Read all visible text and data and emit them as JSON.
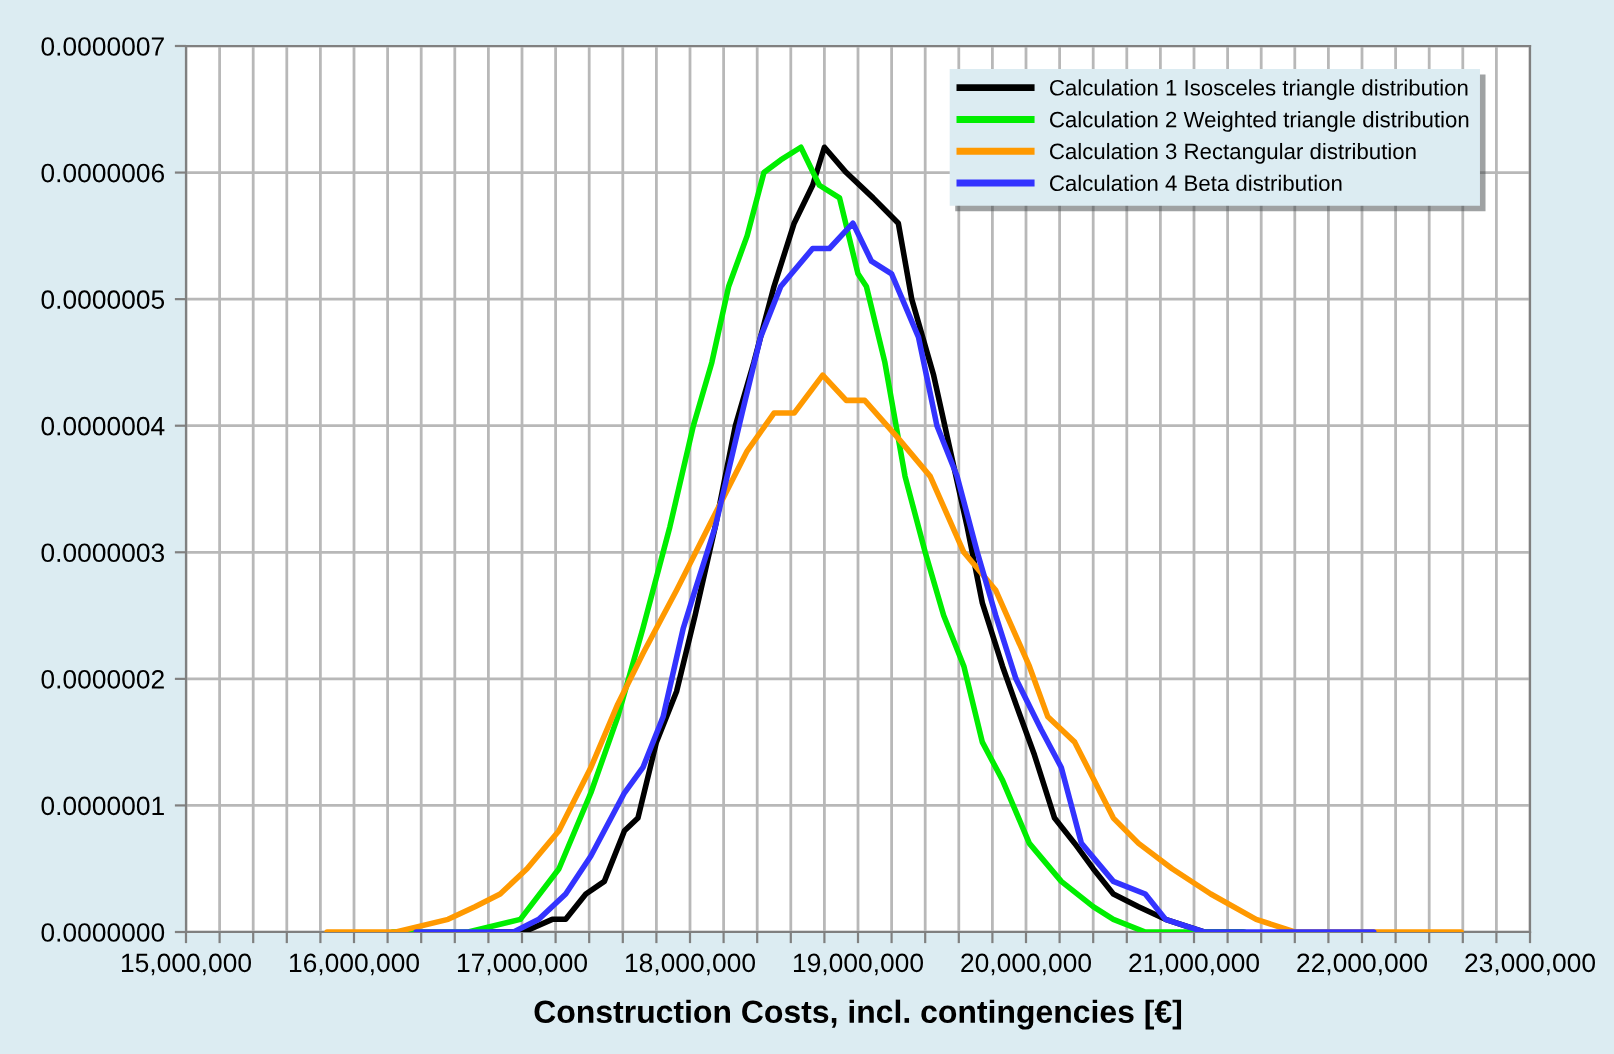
{
  "chart_data": {
    "type": "line",
    "xlabel": "Construction Costs, incl. contingencies [€]",
    "xlim": [
      15000000,
      23000000
    ],
    "xticks": [
      {
        "value": 15000000,
        "label": "15,000,000"
      },
      {
        "value": 15200000,
        "label": null
      },
      {
        "value": 15400000,
        "label": null
      },
      {
        "value": 15600000,
        "label": null
      },
      {
        "value": 15800000,
        "label": null
      },
      {
        "value": 16000000,
        "label": "16,000,000"
      },
      {
        "value": 16200000,
        "label": null
      },
      {
        "value": 16400000,
        "label": null
      },
      {
        "value": 16600000,
        "label": null
      },
      {
        "value": 16800000,
        "label": null
      },
      {
        "value": 17000000,
        "label": "17,000,000"
      },
      {
        "value": 17200000,
        "label": null
      },
      {
        "value": 17400000,
        "label": null
      },
      {
        "value": 17600000,
        "label": null
      },
      {
        "value": 17800000,
        "label": null
      },
      {
        "value": 18000000,
        "label": "18,000,000"
      },
      {
        "value": 18200000,
        "label": null
      },
      {
        "value": 18400000,
        "label": null
      },
      {
        "value": 18600000,
        "label": null
      },
      {
        "value": 18800000,
        "label": null
      },
      {
        "value": 19000000,
        "label": "19,000,000"
      },
      {
        "value": 19200000,
        "label": null
      },
      {
        "value": 19400000,
        "label": null
      },
      {
        "value": 19600000,
        "label": null
      },
      {
        "value": 19800000,
        "label": null
      },
      {
        "value": 20000000,
        "label": "20,000,000"
      },
      {
        "value": 20200000,
        "label": null
      },
      {
        "value": 20400000,
        "label": null
      },
      {
        "value": 20600000,
        "label": null
      },
      {
        "value": 20800000,
        "label": null
      },
      {
        "value": 21000000,
        "label": "21,000,000"
      },
      {
        "value": 21200000,
        "label": null
      },
      {
        "value": 21400000,
        "label": null
      },
      {
        "value": 21600000,
        "label": null
      },
      {
        "value": 21800000,
        "label": null
      },
      {
        "value": 22000000,
        "label": "22,000,000"
      },
      {
        "value": 22200000,
        "label": null
      },
      {
        "value": 22400000,
        "label": null
      },
      {
        "value": 22600000,
        "label": null
      },
      {
        "value": 22800000,
        "label": null
      },
      {
        "value": 23000000,
        "label": "23,000,000"
      }
    ],
    "ylim": [
      0,
      7e-07
    ],
    "yticks": [
      {
        "value": 0,
        "label": "0.0000000"
      },
      {
        "value": 1e-07,
        "label": "0.0000001"
      },
      {
        "value": 2e-07,
        "label": "0.0000002"
      },
      {
        "value": 3e-07,
        "label": "0.0000003"
      },
      {
        "value": 4e-07,
        "label": "0.0000004"
      },
      {
        "value": 5e-07,
        "label": "0.0000005"
      },
      {
        "value": 6e-07,
        "label": "0.0000006"
      },
      {
        "value": 7e-07,
        "label": "0.0000007"
      }
    ],
    "grid": true,
    "legend": "top right",
    "marker": "none",
    "line_style": "solid",
    "series": [
      {
        "name": "Calculation 1 Isosceles triangle distribution",
        "color": "#000000",
        "x": [
          16720000,
          17010000,
          17180000,
          17260000,
          17380000,
          17490000,
          17610000,
          17690000,
          17800000,
          17920000,
          18030000,
          18150000,
          18270000,
          18380000,
          18500000,
          18620000,
          18730000,
          18800000,
          18930000,
          19090000,
          19240000,
          19320000,
          19450000,
          19550000,
          19650000,
          19740000,
          19860000,
          19940000,
          20050000,
          20170000,
          20290000,
          20400000,
          20520000,
          20670000,
          20830000,
          21060000,
          21290000
        ],
        "values": [
          0,
          0,
          1e-08,
          1e-08,
          3e-08,
          4e-08,
          8e-08,
          9e-08,
          1.5e-07,
          1.9e-07,
          2.5e-07,
          3.2e-07,
          4e-07,
          4.5e-07,
          5.1e-07,
          5.6e-07,
          5.9e-07,
          6.2e-07,
          6e-07,
          5.8e-07,
          5.6e-07,
          5e-07,
          4.4e-07,
          3.8e-07,
          3.2e-07,
          2.6e-07,
          2.1e-07,
          1.8e-07,
          1.4e-07,
          9e-08,
          7e-08,
          5e-08,
          3e-08,
          2e-08,
          1e-08,
          0,
          0
        ]
      },
      {
        "name": "Calculation 2 Weighted triangle distribution",
        "color": "#00ee00",
        "x": [
          16230000,
          16680000,
          16990000,
          17220000,
          17410000,
          17570000,
          17720000,
          17880000,
          18020000,
          18130000,
          18230000,
          18340000,
          18440000,
          18540000,
          18660000,
          18770000,
          18890000,
          19000000,
          19050000,
          19160000,
          19280000,
          19400000,
          19510000,
          19630000,
          19740000,
          19860000,
          20020000,
          20210000,
          20400000,
          20520000,
          20710000,
          20980000,
          21300000
        ],
        "values": [
          0,
          0,
          1e-08,
          5e-08,
          1.1e-07,
          1.7e-07,
          2.4e-07,
          3.2e-07,
          4e-07,
          4.5e-07,
          5.1e-07,
          5.5e-07,
          6e-07,
          6.1e-07,
          6.2e-07,
          5.9e-07,
          5.8e-07,
          5.2e-07,
          5.1e-07,
          4.5e-07,
          3.6e-07,
          3e-07,
          2.5e-07,
          2.1e-07,
          1.5e-07,
          1.2e-07,
          7e-08,
          4e-08,
          2e-08,
          1e-08,
          0,
          0,
          0
        ]
      },
      {
        "name": "Calculation 3 Rectangular distribution",
        "color": "#ff9900",
        "x": [
          15840000,
          16250000,
          16560000,
          16720000,
          16870000,
          17030000,
          17220000,
          17410000,
          17570000,
          17720000,
          17920000,
          18110000,
          18340000,
          18500000,
          18620000,
          18790000,
          18930000,
          19040000,
          19240000,
          19430000,
          19630000,
          19820000,
          20020000,
          20130000,
          20290000,
          20520000,
          20670000,
          20870000,
          21100000,
          21370000,
          21600000,
          21990000,
          22590000
        ],
        "values": [
          0,
          0,
          1e-08,
          2e-08,
          3e-08,
          5e-08,
          8e-08,
          1.3e-07,
          1.8e-07,
          2.2e-07,
          2.7e-07,
          3.2e-07,
          3.8e-07,
          4.1e-07,
          4.1e-07,
          4.4e-07,
          4.2e-07,
          4.2e-07,
          3.9e-07,
          3.6e-07,
          3e-07,
          2.7e-07,
          2.1e-07,
          1.7e-07,
          1.5e-07,
          9e-08,
          7e-08,
          5e-08,
          3e-08,
          1e-08,
          0,
          0,
          0
        ]
      },
      {
        "name": "Calculation 4 Beta distribution",
        "color": "#3333ff",
        "x": [
          16370000,
          16950000,
          17100000,
          17260000,
          17410000,
          17610000,
          17720000,
          17840000,
          17960000,
          18030000,
          18150000,
          18310000,
          18420000,
          18540000,
          18730000,
          18830000,
          18970000,
          19080000,
          19200000,
          19360000,
          19470000,
          19590000,
          19710000,
          19820000,
          19940000,
          20090000,
          20210000,
          20330000,
          20520000,
          20710000,
          20830000,
          21060000,
          21290000,
          22070000
        ],
        "values": [
          0,
          0,
          1e-08,
          3e-08,
          6e-08,
          1.1e-07,
          1.3e-07,
          1.7e-07,
          2.4e-07,
          2.7e-07,
          3.2e-07,
          4.1e-07,
          4.7e-07,
          5.1e-07,
          5.4e-07,
          5.4e-07,
          5.6e-07,
          5.3e-07,
          5.2e-07,
          4.7e-07,
          4e-07,
          3.6e-07,
          3e-07,
          2.5e-07,
          2e-07,
          1.6e-07,
          1.3e-07,
          7e-08,
          4e-08,
          3e-08,
          1e-08,
          0,
          0,
          0
        ]
      }
    ]
  }
}
